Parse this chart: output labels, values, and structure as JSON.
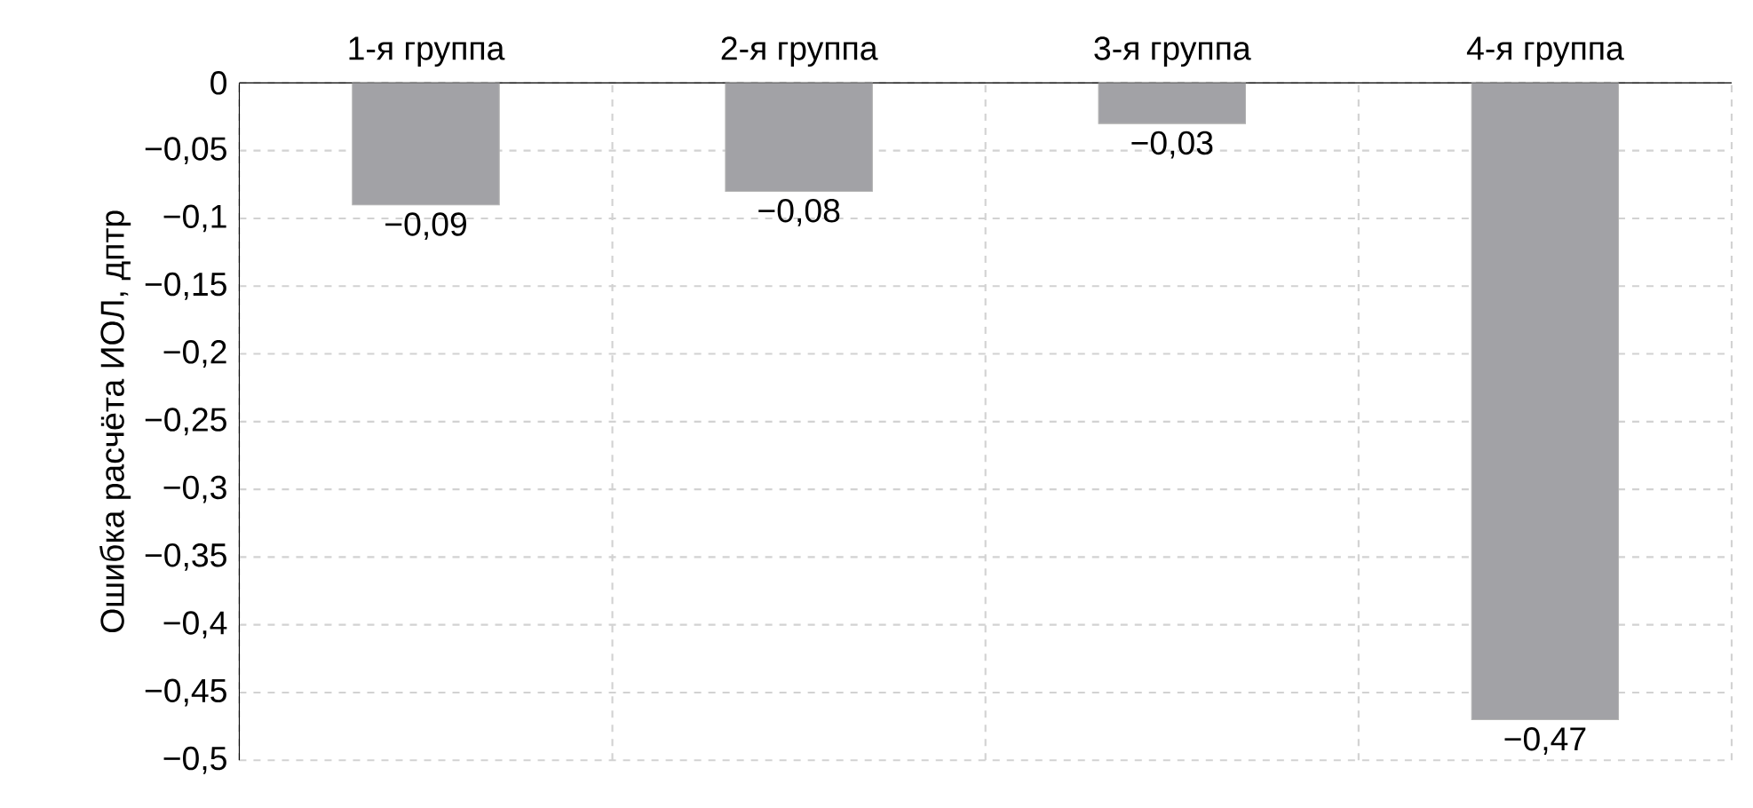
{
  "chart_data": {
    "type": "bar",
    "ylabel": "Ошибка расчёта ИОЛ, дптр",
    "categories": [
      "1-я группа",
      "2-я группа",
      "3-я группа",
      "4-я группа"
    ],
    "values": [
      -0.09,
      -0.08,
      -0.03,
      -0.47
    ],
    "value_labels": [
      "−0,09",
      "−0,08",
      "−0,03",
      "−0,47"
    ],
    "color": "#a2a2a6",
    "ylim": [
      -0.5,
      0
    ],
    "yticks": [
      {
        "value": 0,
        "label": "0"
      },
      {
        "value": -0.05,
        "label": "−0,05"
      },
      {
        "value": -0.1,
        "label": "−0,1"
      },
      {
        "value": -0.15,
        "label": "−0,15"
      },
      {
        "value": -0.2,
        "label": "−0,2"
      },
      {
        "value": -0.25,
        "label": "−0,25"
      },
      {
        "value": -0.3,
        "label": "−0,3"
      },
      {
        "value": -0.35,
        "label": "−0,35"
      },
      {
        "value": -0.4,
        "label": "−0,4"
      },
      {
        "value": -0.45,
        "label": "−0,45"
      },
      {
        "value": -0.5,
        "label": "−0,5"
      }
    ],
    "grid": true
  }
}
